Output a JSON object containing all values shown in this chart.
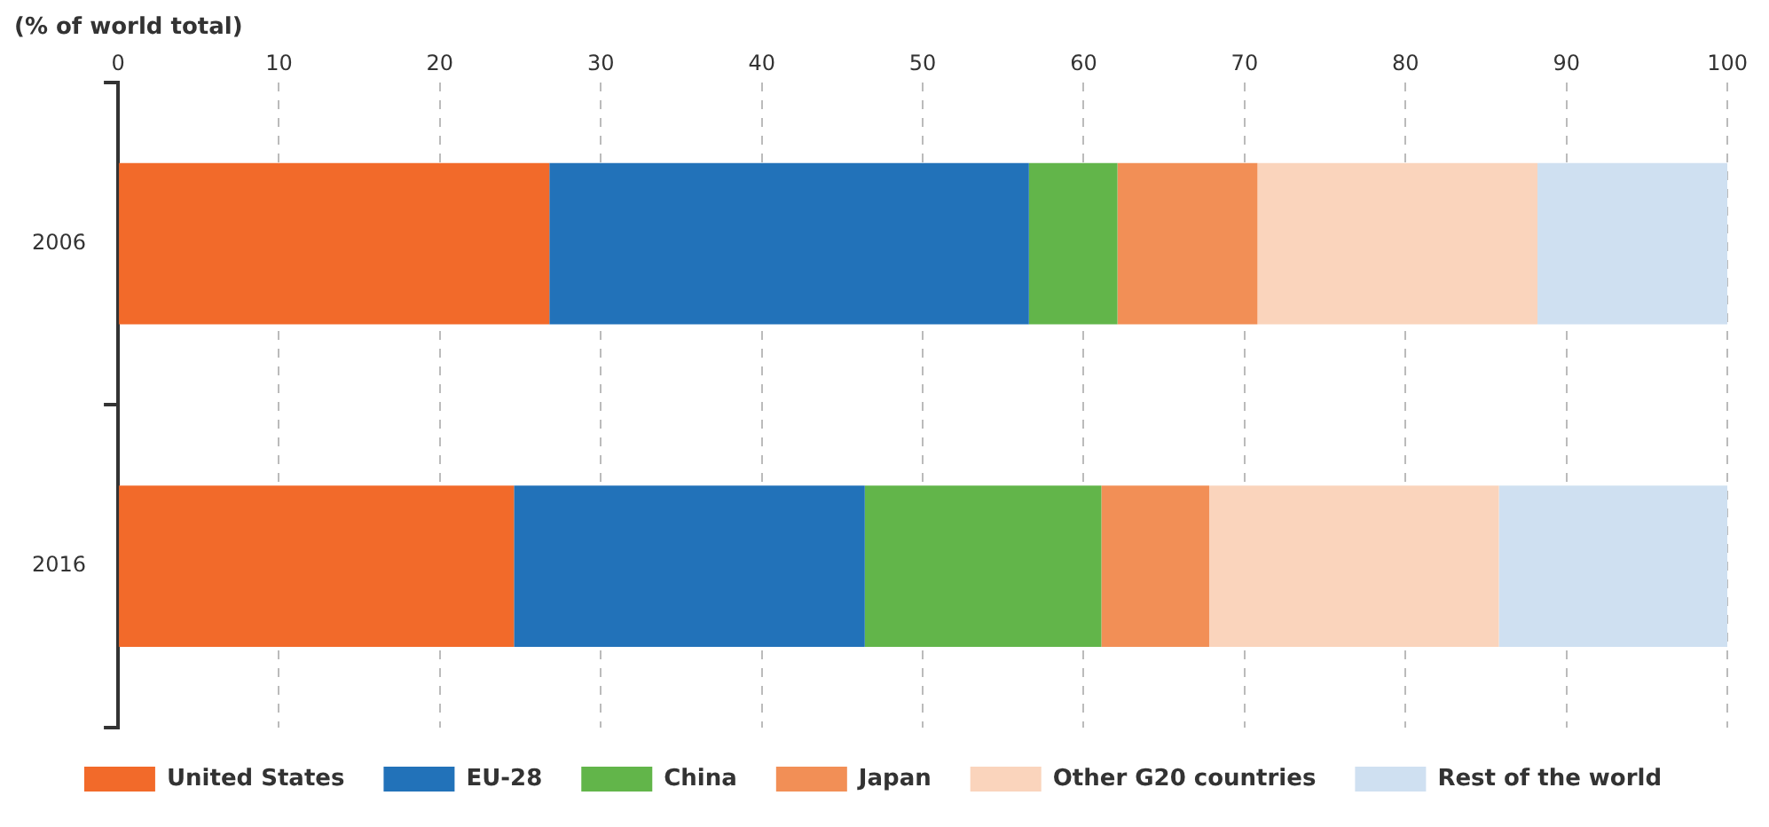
{
  "chart_data": {
    "type": "bar",
    "orientation": "horizontal",
    "stacked": true,
    "subtitle": "(% of world total)",
    "categories": [
      "2006",
      "2016"
    ],
    "xlim": [
      0,
      100
    ],
    "xticks": [
      0,
      10,
      20,
      30,
      40,
      50,
      60,
      70,
      80,
      90,
      100
    ],
    "grid": "x",
    "legend": "bottom",
    "series": [
      {
        "name": "United States",
        "color": "#f26a2a",
        "values": [
          26.8,
          24.6
        ]
      },
      {
        "name": "EU-28",
        "color": "#2272b9",
        "values": [
          29.8,
          21.8
        ]
      },
      {
        "name": "China",
        "color": "#62b54a",
        "values": [
          5.5,
          14.7
        ]
      },
      {
        "name": "Japan",
        "color": "#f28f56",
        "values": [
          8.7,
          6.7
        ]
      },
      {
        "name": "Other G20 countries",
        "color": "#fad4bc",
        "values": [
          17.4,
          18.0
        ]
      },
      {
        "name": "Rest of the world",
        "color": "#cfe0f1",
        "values": [
          11.8,
          14.2
        ]
      }
    ]
  }
}
